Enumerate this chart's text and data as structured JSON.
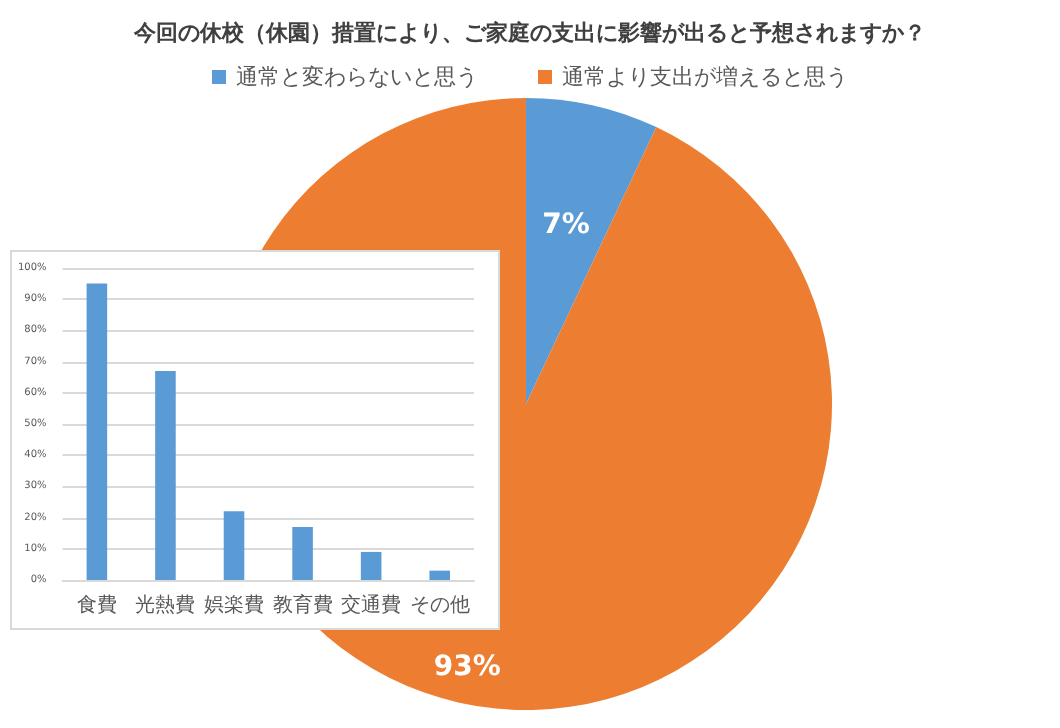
{
  "chart_data": [
    {
      "type": "pie",
      "title": "今回の休校（休園）措置により、ご家庭の支出に影響が出ると予想されますか？",
      "categories": [
        "通常と変わらないと思う",
        "通常より支出が増えると思う"
      ],
      "values": [
        7,
        93
      ],
      "colors": [
        "#5b9bd5",
        "#ed7d31"
      ],
      "value_labels": [
        "7%",
        "93%"
      ],
      "legend": "top"
    },
    {
      "type": "bar",
      "categories": [
        "食費",
        "光熱費",
        "娯楽費",
        "教育費",
        "交通費",
        "その他"
      ],
      "values": [
        95,
        67,
        22,
        17,
        9,
        3
      ],
      "color": "#5b9bd5",
      "ylim": [
        0,
        100
      ],
      "yticks": [
        {
          "value": 0,
          "label": "0%"
        },
        {
          "value": 10,
          "label": "10%"
        },
        {
          "value": 20,
          "label": "20%"
        },
        {
          "value": 30,
          "label": "30%"
        },
        {
          "value": 40,
          "label": "40%"
        },
        {
          "value": 50,
          "label": "50%"
        },
        {
          "value": 60,
          "label": "60%"
        },
        {
          "value": 70,
          "label": "70%"
        },
        {
          "value": 80,
          "label": "80%"
        },
        {
          "value": 90,
          "label": "90%"
        },
        {
          "value": 100,
          "label": "100%"
        }
      ],
      "grid": "y"
    }
  ]
}
